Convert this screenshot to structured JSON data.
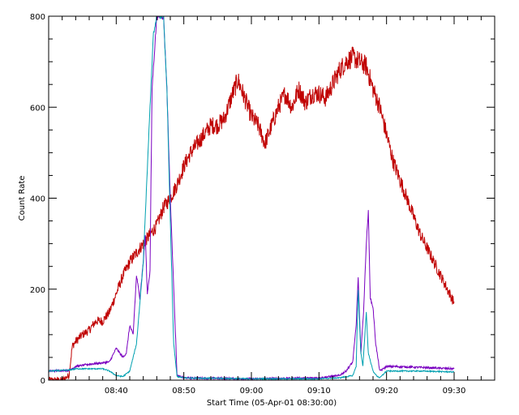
{
  "chart_data": {
    "type": "line",
    "title": "",
    "xlabel": "Start Time (05-Apr-01 08:30:00)",
    "ylabel": "Count Rate",
    "x_unit": "time (hh:mm)",
    "xlim": [
      "08:30",
      "09:36"
    ],
    "ylim": [
      0,
      800
    ],
    "x_tick_labels": [
      "08:40",
      "08:50",
      "09:00",
      "09:10",
      "09:20",
      "09:30"
    ],
    "x_tick_values": [
      "08:40",
      "08:50",
      "09:00",
      "09:10",
      "09:20",
      "09:30"
    ],
    "y_tick_labels": [
      "0",
      "200",
      "400",
      "600",
      "800"
    ],
    "y_tick_values": [
      0,
      200,
      400,
      600,
      800
    ],
    "grid": false,
    "legend": "none",
    "series": [
      {
        "color": "#c00000",
        "x": [
          "08:30",
          "08:32",
          "08:33",
          "08:33.5",
          "08:34",
          "08:35",
          "08:36",
          "08:37",
          "08:38",
          "08:39",
          "08:40",
          "08:41",
          "08:42",
          "08:43",
          "08:44",
          "08:45",
          "08:46",
          "08:47",
          "08:48",
          "08:49",
          "08:50",
          "08:51",
          "08:52",
          "08:53",
          "08:54",
          "08:55",
          "08:56",
          "08:57",
          "08:58",
          "08:59",
          "09:00",
          "09:01",
          "09:02",
          "09:03",
          "09:04",
          "09:05",
          "09:06",
          "09:07",
          "09:08",
          "09:09",
          "09:10",
          "09:11",
          "09:12",
          "09:13",
          "09:14",
          "09:15",
          "09:16",
          "09:17",
          "09:18",
          "09:19",
          "09:20",
          "09:21",
          "09:22",
          "09:23",
          "09:24",
          "09:25",
          "09:26",
          "09:27",
          "09:28",
          "09:29",
          "09:30"
        ],
        "y": [
          0,
          0,
          10,
          75,
          85,
          100,
          110,
          130,
          130,
          150,
          190,
          230,
          260,
          280,
          300,
          320,
          340,
          380,
          400,
          430,
          470,
          500,
          520,
          540,
          560,
          560,
          575,
          620,
          660,
          620,
          580,
          560,
          520,
          560,
          600,
          630,
          600,
          640,
          610,
          630,
          630,
          620,
          650,
          680,
          700,
          710,
          700,
          690,
          640,
          600,
          540,
          480,
          440,
          400,
          360,
          320,
          290,
          260,
          230,
          200,
          170
        ],
        "noise": 18
      },
      {
        "color": "#7a00c0",
        "x": [
          "08:30",
          "08:33",
          "08:34",
          "08:36",
          "08:38",
          "08:39",
          "08:40",
          "08:41",
          "08:41.5",
          "08:42",
          "08:42.5",
          "08:43",
          "08:43.5",
          "08:44",
          "08:44.3",
          "08:44.6",
          "08:45",
          "08:45.3",
          "08:46",
          "08:47",
          "08:47.5",
          "08:48",
          "08:49",
          "08:50",
          "09:00",
          "09:10",
          "09:13",
          "09:14",
          "09:15",
          "09:15.5",
          "09:15.8",
          "09:16.2",
          "09:16.6",
          "09:17",
          "09:17.3",
          "09:17.6",
          "09:18",
          "09:18.4",
          "09:19",
          "09:20",
          "09:21",
          "09:25",
          "09:30"
        ],
        "y": [
          20,
          22,
          30,
          35,
          38,
          40,
          70,
          50,
          60,
          120,
          100,
          230,
          180,
          260,
          320,
          190,
          240,
          640,
          800,
          800,
          640,
          400,
          10,
          5,
          3,
          5,
          10,
          20,
          40,
          120,
          225,
          60,
          150,
          300,
          370,
          180,
          160,
          80,
          20,
          30,
          30,
          28,
          25
        ],
        "noise": 5
      },
      {
        "color": "#00a0b0",
        "x": [
          "08:30",
          "08:33",
          "08:34",
          "08:36",
          "08:38",
          "08:39",
          "08:40",
          "08:41",
          "08:42",
          "08:43",
          "08:44",
          "08:45",
          "08:45.5",
          "08:46",
          "08:46.5",
          "08:47",
          "08:47.5",
          "08:48",
          "08:48.5",
          "08:49",
          "08:50",
          "09:00",
          "09:10",
          "09:13",
          "09:15",
          "09:15.5",
          "09:15.8",
          "09:16.2",
          "09:16.5",
          "09:17",
          "09:17.3",
          "09:18",
          "09:18.5",
          "09:19",
          "09:20",
          "09:21",
          "09:25",
          "09:30"
        ],
        "y": [
          20,
          22,
          25,
          25,
          25,
          20,
          10,
          8,
          20,
          80,
          260,
          600,
          760,
          800,
          800,
          800,
          640,
          350,
          80,
          8,
          5,
          3,
          3,
          5,
          10,
          30,
          200,
          60,
          30,
          150,
          60,
          20,
          10,
          5,
          20,
          20,
          20,
          18
        ],
        "noise": 3
      }
    ]
  }
}
